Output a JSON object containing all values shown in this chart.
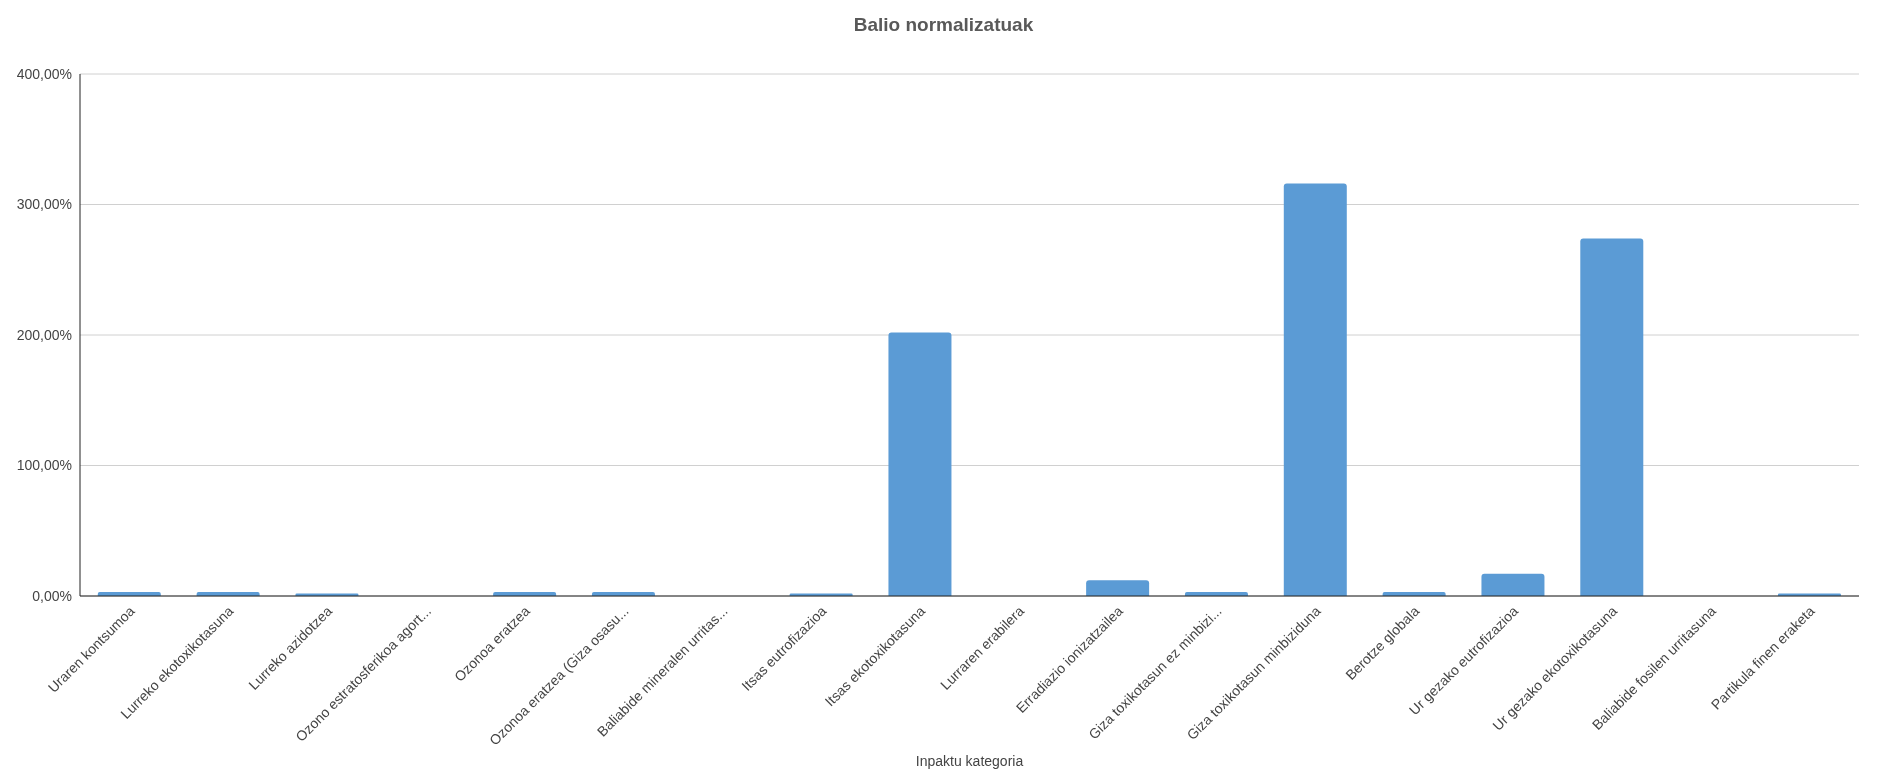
{
  "chart_data": {
    "type": "bar",
    "title": "Balio normalizatuak",
    "xlabel": "Inpaktu kategoria",
    "categories": [
      "Uraren kontsumoa",
      "Lurreko ekotoxikotasuna",
      "Lurreko azidotzea",
      "Ozono estratosferikoa agort...",
      "Ozonoa eratzea",
      "Ozonoa eratzea (Giza osasu...",
      "Baliabide mineralen urritas...",
      "Itsas eutrofizazioa",
      "Itsas ekotoxikotasuna",
      "Lurraren erabilera",
      "Erradiazio ionizatzailea",
      "Giza toxikotasun ez minbizi...",
      "Giza toxikotasun minbiziduna",
      "Berotze globala",
      "Ur gezako eutrofizazioa",
      "Ur gezako ekotoxikotasuna",
      "Baliabide fosilen urritasuna",
      "Partikula finen eraketa"
    ],
    "values": [
      3,
      3,
      2,
      0,
      3,
      3,
      0,
      2,
      202,
      0,
      12,
      3,
      316,
      3,
      17,
      274,
      0,
      2
    ],
    "color": "#5b9bd5",
    "ylim": [
      0,
      400
    ],
    "yticks": [
      {
        "value": 0,
        "label": "0,00%"
      },
      {
        "value": 100,
        "label": "100,00%"
      },
      {
        "value": 200,
        "label": "200,00%"
      },
      {
        "value": 300,
        "label": "300,00%"
      },
      {
        "value": 400,
        "label": "400,00%"
      }
    ],
    "grid": "y"
  }
}
